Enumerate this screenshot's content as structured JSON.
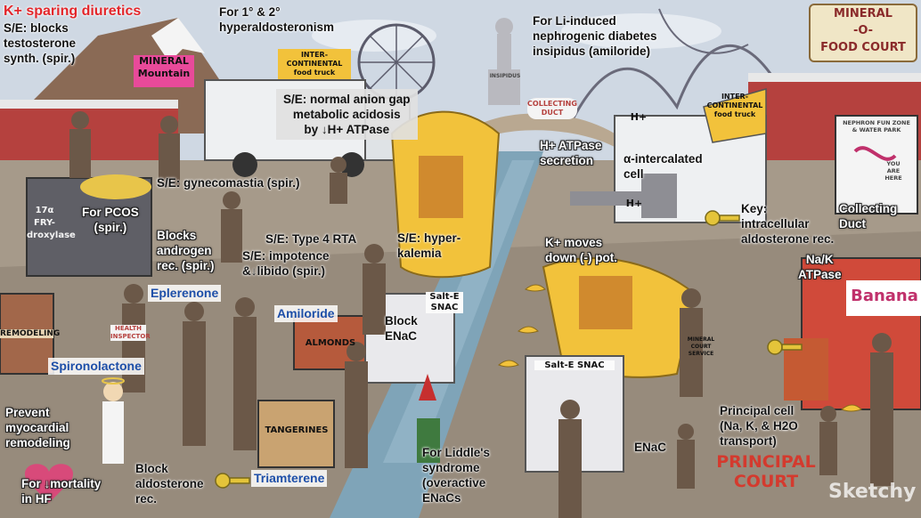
{
  "labels": {
    "k_sparing": "K+ sparing diuretics",
    "se_blocks_testosterone": "S/E: blocks\ntestosterone\nsynth. (spir.)",
    "hyperaldo": "For 1° & 2°\nhyperaldosteronism",
    "li_ndi": "For Li-induced\nnephrogenic diabetes\ninsipidus (amiloride)",
    "acidosis": "S/E: normal anion gap\nmetabolic acidosis\nby ↓H+ ATPase",
    "h_atpase": "H+ ATPase\nsecretion",
    "alpha_cell": "α-intercalated\ncell",
    "gynecomastia": "S/E: gynecomastia (spir.)",
    "pcos": "For PCOS\n(spir.)",
    "blocks_androgen": "Blocks\nandrogen\nrec. (spir.)",
    "type4_rta": "S/E: Type 4 RTA",
    "impotence": "S/E: impotence\n&↓libido (spir.)",
    "hyperkalemia": "S/E: hyper-\nkalemia",
    "k_moves": "K+ moves\ndown (-) pot.",
    "key_rec": "Key:\nintracellular\naldosterone rec.",
    "collecting_duct": "Collecting\nDuct",
    "nak_atpase": "Na/K\nATPase",
    "block_enac": "Block\nENaC",
    "prevent_remodeling": "Prevent\nmyocardial\nremodeling",
    "mortality": "For ↓mortality\nin HF",
    "block_aldo": "Block\naldosterone\nrec.",
    "liddle": "For Liddle's\nsyndrome\n(overactive\nENaCs",
    "enac": "ENaC",
    "principal_cell": "Principal cell\n(Na, K, & H2O\ntransport)"
  },
  "drugs": {
    "eplerenone": "Eplerenone",
    "spironolactone": "Spironolactone",
    "amiloride": "Amiloride",
    "triamterene": "Triamterene"
  },
  "signs": {
    "mineral_mountain": "MINERAL\nMountain",
    "food_truck_left": "INTER-\nCONTINENTAL\nfood truck",
    "food_truck_right": "INTER-\nCONTINENTAL\nfood truck",
    "food_court": "MINERAL\n-O-\nFOOD COURT",
    "collecting_duct": "COLLECTING\nDUCT",
    "insipidus": "INSIPIDUS",
    "nephron_park": "NEPHRON FUN ZONE\n& WATER PARK",
    "you_are_here": "YOU\nARE\nHERE",
    "fry_drome": "17α\nFRY-droxylase",
    "remodeling": "REMODELING",
    "health_inspector": "HEALTH\nINSPECTOR",
    "salt_snac_left": "Salt-E\nSNAC",
    "salt_snac_right": "Salt-E SNAC",
    "almonds": "ALMONDS",
    "tangerines": "TANGERINES",
    "bananas": "Banana",
    "mineral_court_service": "MINERAL\nCOURT\nSERVICE",
    "principal_court": "PRINCIPAL\nCOURT",
    "h_plus_1": "H+",
    "h_plus_2": "H+"
  },
  "watermark": "Sketchy",
  "colors": {
    "sky": "#cfd8e3",
    "duct": "#7fa4b8",
    "truck": "#eef0f2",
    "banana": "#f2c23b",
    "accent_red": "#e3262b",
    "drug_blue": "#1e4fa8"
  }
}
